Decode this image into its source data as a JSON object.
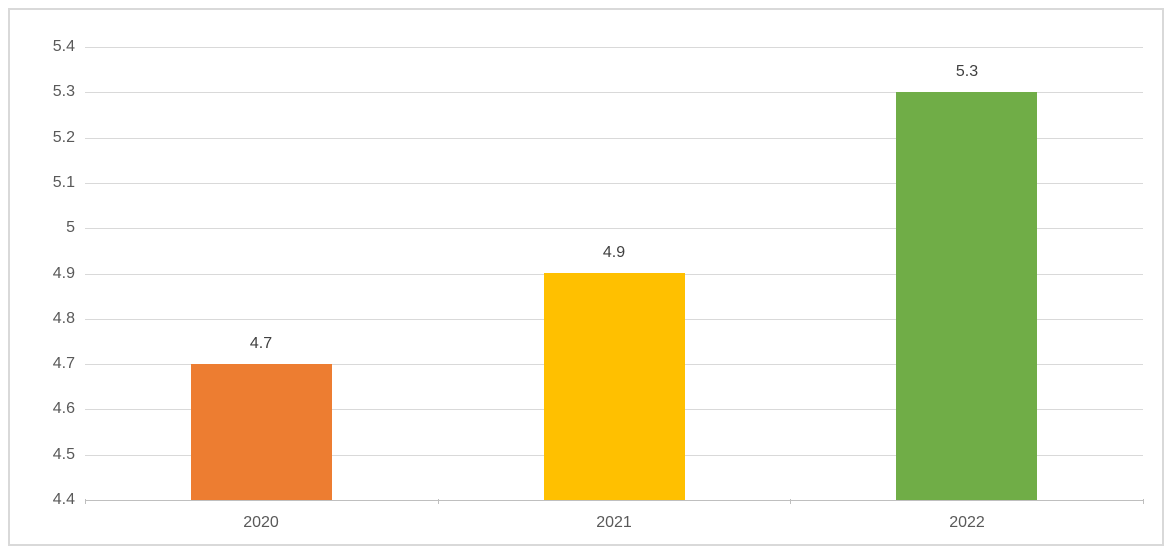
{
  "chart_data": {
    "type": "bar",
    "title": "",
    "xlabel": "",
    "ylabel": "",
    "categories": [
      "2020",
      "2021",
      "2022"
    ],
    "values": [
      4.7,
      4.9,
      5.3
    ],
    "data_labels": [
      "4.7",
      "4.9",
      "5.3"
    ],
    "bar_colors": [
      "#ED7D31",
      "#FFC000",
      "#70AD47"
    ],
    "ylim": [
      4.4,
      5.4
    ],
    "y_tick_values": [
      4.4,
      4.5,
      4.6,
      4.7,
      4.8,
      4.9,
      5.0,
      5.1,
      5.2,
      5.3,
      5.4
    ],
    "y_tick_labels": [
      "4.4",
      "4.5",
      "4.6",
      "4.7",
      "4.8",
      "4.9",
      "5",
      "5.1",
      "5.2",
      "5.3",
      "5.4"
    ],
    "grid": "horizontal",
    "legend": "none",
    "colors": {
      "background": "#FFFFFF",
      "chart_border": "#D9D9D9",
      "gridline": "#D9D9D9",
      "axis_line": "#BFBFBF",
      "tick_label": "#595959",
      "data_label": "#404040"
    }
  }
}
